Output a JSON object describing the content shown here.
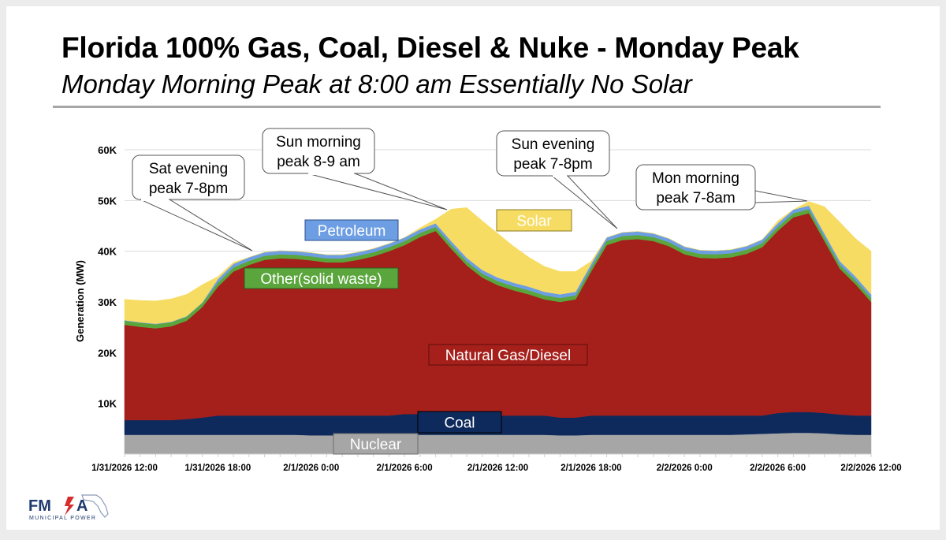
{
  "slide": {
    "title": "Florida 100% Gas, Coal, Diesel & Nuke - Monday Peak",
    "subtitle": "Monday Morning Peak at 8:00 am Essentially No Solar",
    "logo": {
      "text": "FMPA",
      "tagline": "MUNICIPAL POWER",
      "colors": {
        "navy": "#1f3a6e",
        "red": "#d62c2c"
      }
    }
  },
  "chart_data": {
    "type": "area",
    "stacked": true,
    "title": "",
    "xlabel": "",
    "ylabel": "Generation (MW)",
    "ylim": [
      0,
      60000
    ],
    "yticks": [
      {
        "value": 10000,
        "label": "10K"
      },
      {
        "value": 20000,
        "label": "20K"
      },
      {
        "value": 30000,
        "label": "30K"
      },
      {
        "value": 40000,
        "label": "40K"
      },
      {
        "value": 50000,
        "label": "50K"
      },
      {
        "value": 60000,
        "label": "60K"
      }
    ],
    "grid": true,
    "x_start": "1/31/2026 12:00",
    "x_end": "2/2/2026 12:00",
    "x_step": "1 hour",
    "xticks": [
      "1/31/2026 12:00",
      "1/31/2026 18:00",
      "2/1/2026 0:00",
      "2/1/2026 6:00",
      "2/1/2026 12:00",
      "2/1/2026 18:00",
      "2/2/2026 0:00",
      "2/2/2026 6:00",
      "2/2/2026 12:00"
    ],
    "series": [
      {
        "name": "Nuclear",
        "color": "#a6a6a6",
        "label_color": "#ffffff",
        "values": [
          3800,
          3800,
          3800,
          3800,
          3800,
          3800,
          3800,
          3800,
          3800,
          3800,
          3800,
          3800,
          3700,
          3700,
          3700,
          3700,
          3700,
          3700,
          3800,
          3800,
          3800,
          3800,
          3800,
          3800,
          3800,
          3800,
          3800,
          3800,
          3700,
          3700,
          3800,
          3800,
          3800,
          3800,
          3800,
          3800,
          3800,
          3800,
          3800,
          3800,
          3900,
          4000,
          4100,
          4200,
          4200,
          4100,
          3900,
          3800,
          3800
        ]
      },
      {
        "name": "Coal",
        "color": "#0e2a5c",
        "label_color": "#ffffff",
        "values": [
          2900,
          2900,
          2900,
          2900,
          3100,
          3400,
          3800,
          3800,
          3800,
          3800,
          3800,
          3800,
          3900,
          3900,
          3900,
          3900,
          3900,
          3900,
          4100,
          4100,
          4100,
          4100,
          3800,
          3800,
          3800,
          3800,
          3800,
          3800,
          3500,
          3500,
          3800,
          3800,
          3800,
          3800,
          3800,
          3800,
          3800,
          3800,
          3800,
          3800,
          3700,
          3600,
          4000,
          4100,
          4100,
          4000,
          3900,
          3800,
          3800
        ]
      },
      {
        "name": "Natural Gas/Diesel",
        "color": "#a51f1b",
        "label_color": "#ffffff",
        "values": [
          18800,
          18400,
          18100,
          18500,
          19400,
          21800,
          25400,
          28400,
          29700,
          30700,
          31000,
          30900,
          30600,
          30200,
          30200,
          30700,
          31400,
          32400,
          33300,
          34900,
          36100,
          32600,
          29600,
          27200,
          25700,
          24700,
          23900,
          22900,
          22800,
          23300,
          28400,
          33600,
          34600,
          34800,
          34400,
          33400,
          31800,
          31100,
          31000,
          31200,
          31900,
          33200,
          35900,
          38400,
          39200,
          33900,
          28700,
          25900,
          22400
        ]
      },
      {
        "name": "Other(solid waste)",
        "color": "#5aa63c",
        "label_color": "#ffffff",
        "values": [
          800,
          800,
          800,
          800,
          800,
          800,
          800,
          800,
          800,
          800,
          800,
          800,
          800,
          800,
          800,
          800,
          800,
          800,
          800,
          800,
          800,
          800,
          800,
          800,
          800,
          800,
          800,
          800,
          800,
          800,
          800,
          800,
          800,
          800,
          800,
          800,
          800,
          800,
          800,
          800,
          800,
          800,
          800,
          800,
          800,
          800,
          800,
          800,
          800
        ]
      },
      {
        "name": "Petroleum",
        "color": "#6d9ee3",
        "label_color": "#ffffff",
        "values": [
          100,
          100,
          100,
          100,
          100,
          100,
          700,
          700,
          700,
          700,
          700,
          700,
          700,
          700,
          700,
          700,
          700,
          700,
          700,
          700,
          700,
          700,
          700,
          700,
          700,
          700,
          700,
          700,
          700,
          700,
          700,
          700,
          700,
          700,
          700,
          700,
          700,
          700,
          700,
          700,
          700,
          700,
          700,
          700,
          700,
          700,
          700,
          700,
          700
        ]
      },
      {
        "name": "Solar",
        "color": "#f7dc63",
        "label_color": "#ffffff",
        "values": [
          4100,
          4300,
          4500,
          4500,
          4300,
          3500,
          500,
          300,
          0,
          0,
          0,
          0,
          0,
          0,
          0,
          0,
          0,
          0,
          0,
          300,
          800,
          6300,
          9900,
          9700,
          8700,
          7200,
          5800,
          5000,
          4500,
          4000,
          500,
          0,
          0,
          0,
          0,
          0,
          0,
          0,
          0,
          0,
          0,
          0,
          500,
          0,
          800,
          5300,
          7700,
          7500,
          8500
        ]
      }
    ],
    "annotations": [
      {
        "text": [
          "Sat evening",
          "peak 7-8pm"
        ],
        "x": "1/31/2026 19:00"
      },
      {
        "text": [
          "Sun morning",
          "peak 8-9 am"
        ],
        "x": "2/1/2026 9:00"
      },
      {
        "text": [
          "Sun evening",
          "peak 7-8pm"
        ],
        "x": "2/1/2026 19:00"
      },
      {
        "text": [
          "Mon morning",
          "peak 7-8am"
        ],
        "x": "2/2/2026 8:00"
      }
    ]
  }
}
